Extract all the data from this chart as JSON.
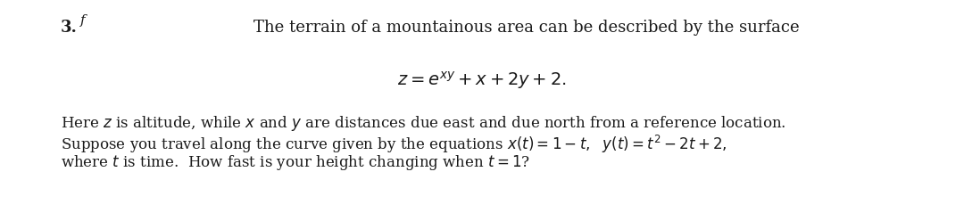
{
  "background_color": "#ffffff",
  "fig_width": 10.8,
  "fig_height": 2.48,
  "dpi": 100,
  "problem_number": "3.",
  "superscript": "f",
  "title_text": "The terrain of a mountainous area can be described by the surface",
  "equation": "$z = e^{xy} + x + 2y + 2.$",
  "body_line1": "Here $z$ is altitude, while $x$ and $y$ are distances due east and due north from a reference location.",
  "body_line2": "Suppose you travel along the curve given by the equations $x(t) = 1 - t,\\ \\ y(t) = t^2 - 2t + 2,$",
  "body_line3": "where $t$ is time.  How fast is your height changing when $t = 1$?",
  "font_size_number": 13,
  "font_size_title": 13,
  "font_size_equation": 14,
  "font_size_body": 12,
  "text_color": "#1a1a1a"
}
